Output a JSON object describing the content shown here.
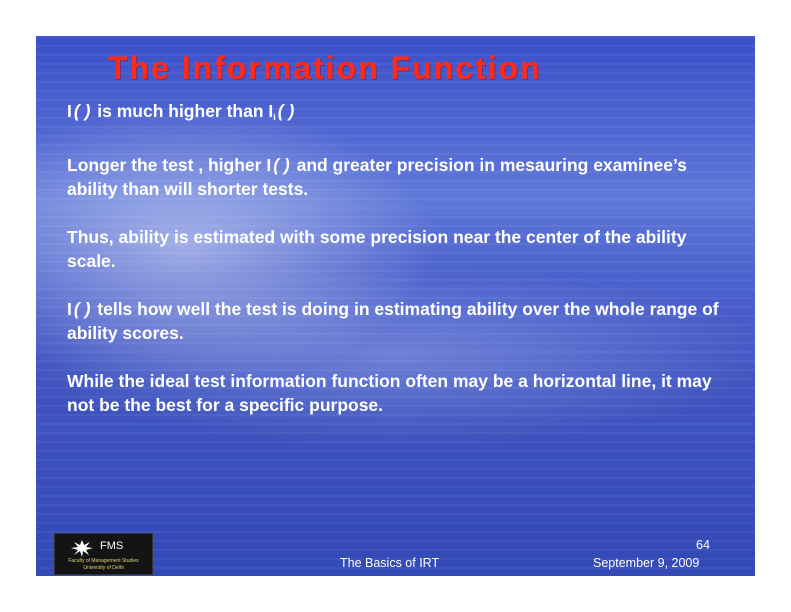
{
  "title": "The Information Function",
  "para1": {
    "pre": "I",
    "sym1": "( )",
    "mid": " is much higher than I",
    "sub": "i",
    "sym2": "( )"
  },
  "para2": {
    "pre": "Longer the test , higher I",
    "sym": "( )",
    "post": " and greater precision in mesauring examinee’s ability than will shorter tests."
  },
  "para3": "Thus, ability is estimated with some precision near the center of the ability scale.",
  "para4": {
    "pre": "I",
    "sym": "( )",
    "post": " tells how well the test is doing in estimating ability over the whole range of ability scores."
  },
  "para5": "While the ideal test information function often may be a horizontal line, it may not be the best for a specific purpose.",
  "logo": {
    "brand": "FMS",
    "faculty": "Faculty of Management Studies",
    "university": "University of Delhi"
  },
  "footer": {
    "center": "The Basics of IRT",
    "page": "64",
    "date": "September 9, 2009"
  }
}
